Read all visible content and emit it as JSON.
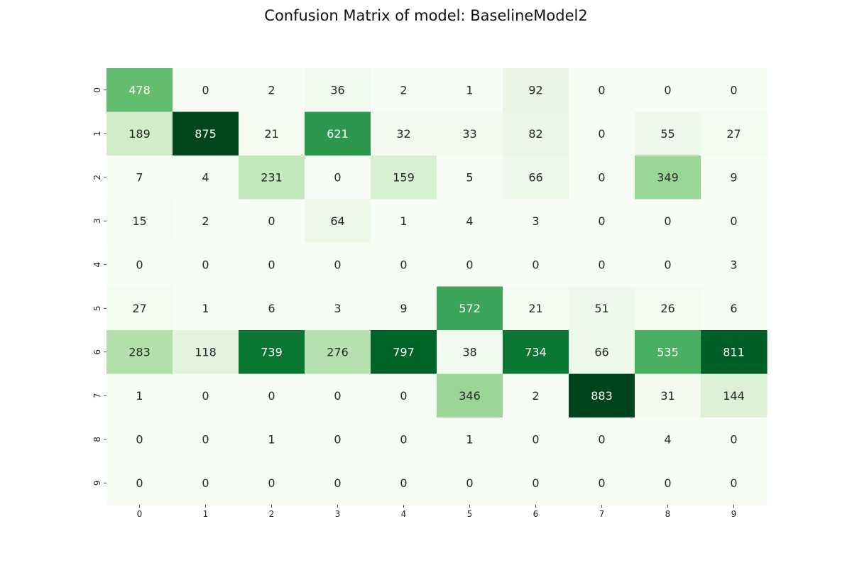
{
  "chart_data": {
    "type": "heatmap",
    "title": "Confusion Matrix of model: BaselineModel2",
    "xlabel": "",
    "ylabel": "",
    "x_ticks": [
      "0",
      "1",
      "2",
      "3",
      "4",
      "5",
      "6",
      "7",
      "8",
      "9"
    ],
    "y_ticks": [
      "0",
      "1",
      "2",
      "3",
      "4",
      "5",
      "6",
      "7",
      "8",
      "9"
    ],
    "colormap": "Greens",
    "colorbar": false,
    "value_range": [
      0,
      883
    ],
    "colors": {
      "low": "#f7fcf5",
      "high": "#00441b",
      "light_text": "#ffffff",
      "dark_text": "#262626"
    },
    "matrix": [
      [
        478,
        0,
        2,
        36,
        2,
        1,
        92,
        0,
        0,
        0
      ],
      [
        189,
        875,
        21,
        621,
        32,
        33,
        82,
        0,
        55,
        27
      ],
      [
        7,
        4,
        231,
        0,
        159,
        5,
        66,
        0,
        349,
        9
      ],
      [
        15,
        2,
        0,
        64,
        1,
        4,
        3,
        0,
        0,
        0
      ],
      [
        0,
        0,
        0,
        0,
        0,
        0,
        0,
        0,
        0,
        3
      ],
      [
        27,
        1,
        6,
        3,
        9,
        572,
        21,
        51,
        26,
        6
      ],
      [
        283,
        118,
        739,
        276,
        797,
        38,
        734,
        66,
        535,
        811
      ],
      [
        1,
        0,
        0,
        0,
        0,
        346,
        2,
        883,
        31,
        144
      ],
      [
        0,
        0,
        1,
        0,
        0,
        1,
        0,
        0,
        4,
        0
      ],
      [
        0,
        0,
        0,
        0,
        0,
        0,
        0,
        0,
        0,
        0
      ]
    ]
  }
}
